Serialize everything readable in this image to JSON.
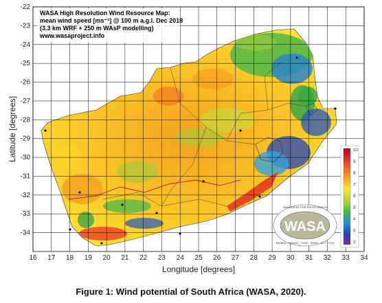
{
  "map": {
    "legend_lines": [
      "WASA High Resolution Wind Resource Map:",
      "mean wind speed [ms⁻¹] @ 100 m a.g.l. Dec 2018",
      "(3.3 km WRF + 250 m WAsP modelling)"
    ],
    "url": "www.wasaproject.info",
    "xlabel": "Longitude [degrees]",
    "ylabel": "Latitude [degrees]",
    "x_ticks": [
      "16",
      "17",
      "18",
      "19",
      "20",
      "21",
      "22",
      "23",
      "24",
      "25",
      "26",
      "27",
      "28",
      "29",
      "30",
      "31",
      "32",
      "33",
      "34"
    ],
    "y_ticks": [
      "-22",
      "-23",
      "-24",
      "-25",
      "-26",
      "-27",
      "-28",
      "-29",
      "-30",
      "-31",
      "-32",
      "-33",
      "-34"
    ],
    "colorbar_ticks": [
      "10",
      "9",
      "8",
      "7",
      "6",
      "5",
      "4",
      "3",
      "2"
    ],
    "logo": {
      "text": "WASA",
      "arc_top": "WIND ATLAS FOR SOUTH AFRICA",
      "arc_bottom": "SANEDI · SANEDI · CSIR · SAWS · UCT · DTU"
    }
  },
  "caption": "Figure 1: Wind potential of South Africa (WASA, 2020)."
}
